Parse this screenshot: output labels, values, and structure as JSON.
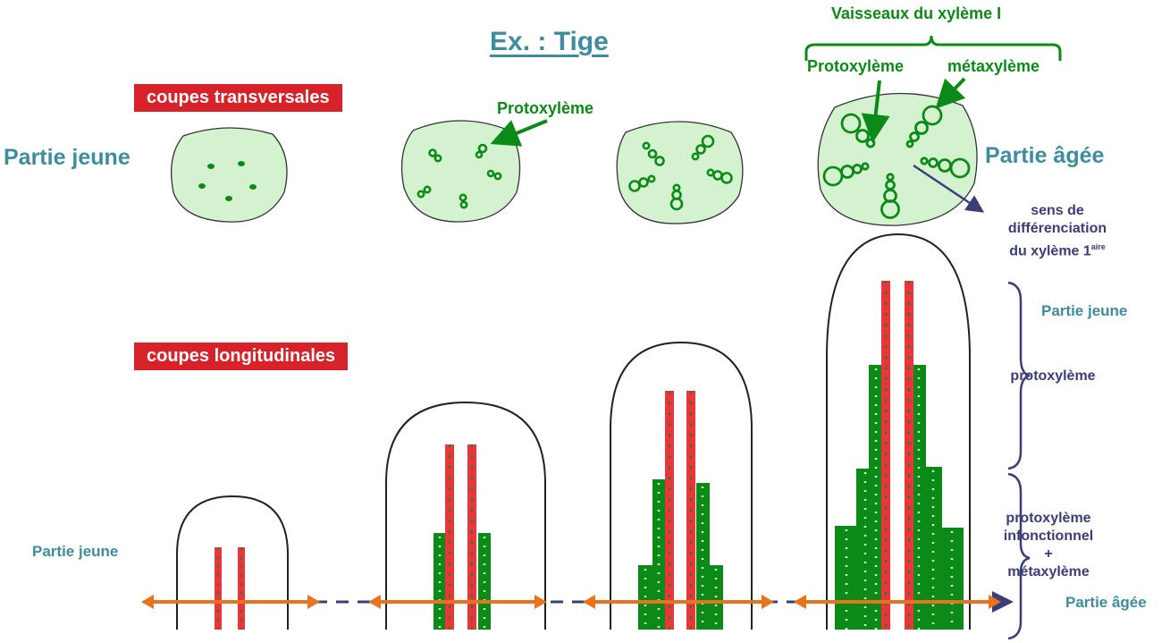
{
  "title": "Ex. : Tige",
  "labels": {
    "transverse": "coupes transversales",
    "longitudinal": "coupes longitudinales",
    "young_top": "Partie jeune",
    "old_top": "Partie âgée",
    "young_bottom": "Partie jeune",
    "old_bottom": "Partie âgée",
    "young_right": "Partie jeune",
    "vessels": "Vaisseaux du xylème I",
    "protoxylem_top": "Protoxylème",
    "metaxylem_top": "métaxylème",
    "protoxylem_section2": "Protoxylème",
    "sense_line1": "sens de",
    "sense_line2": "différenciation",
    "sense_line3": "du xylème 1",
    "sense_sup": "aire",
    "protoxylem_right": "protoxylème",
    "nonfunctional_line1": "protoxylème",
    "nonfunctional_line2": "infonctionnel",
    "nonfunctional_line3": "+",
    "nonfunctional_line4": "métaxylème"
  },
  "colors": {
    "title": "#3e8c9e",
    "red_label": "#d8222a",
    "section_fill": "#d4f2d0",
    "xylem_green": "#0c8a17",
    "protoxylem_red": "#e8363c",
    "arrow_orange": "#e8731e",
    "navy": "#3b3d78"
  }
}
